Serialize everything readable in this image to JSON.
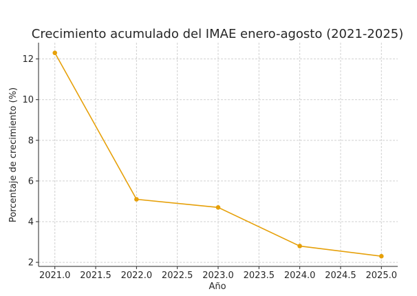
{
  "chart_data": {
    "type": "line",
    "title": "Crecimiento acumulado del IMAE enero-agosto (2021-2025)",
    "xlabel": "Año",
    "ylabel": "Porcentaje de crecimiento (%)",
    "x": [
      2021,
      2022,
      2023,
      2024,
      2025
    ],
    "series": [
      {
        "values": [
          12.3,
          5.1,
          4.7,
          2.8,
          2.3
        ],
        "color": "#e6a009"
      }
    ],
    "xticks": [
      2021.0,
      2021.5,
      2022.0,
      2022.5,
      2023.0,
      2023.5,
      2024.0,
      2024.5,
      2025.0
    ],
    "xtick_labels": [
      "2021.0",
      "2021.5",
      "2022.0",
      "2022.5",
      "2023.0",
      "2023.5",
      "2024.0",
      "2024.5",
      "2025.0"
    ],
    "yticks": [
      2,
      4,
      6,
      8,
      10,
      12
    ],
    "ytick_labels": [
      "2",
      "4",
      "6",
      "8",
      "10",
      "12"
    ],
    "xlim": [
      2020.8,
      2025.2
    ],
    "ylim": [
      1.8,
      12.8
    ],
    "grid": true
  }
}
